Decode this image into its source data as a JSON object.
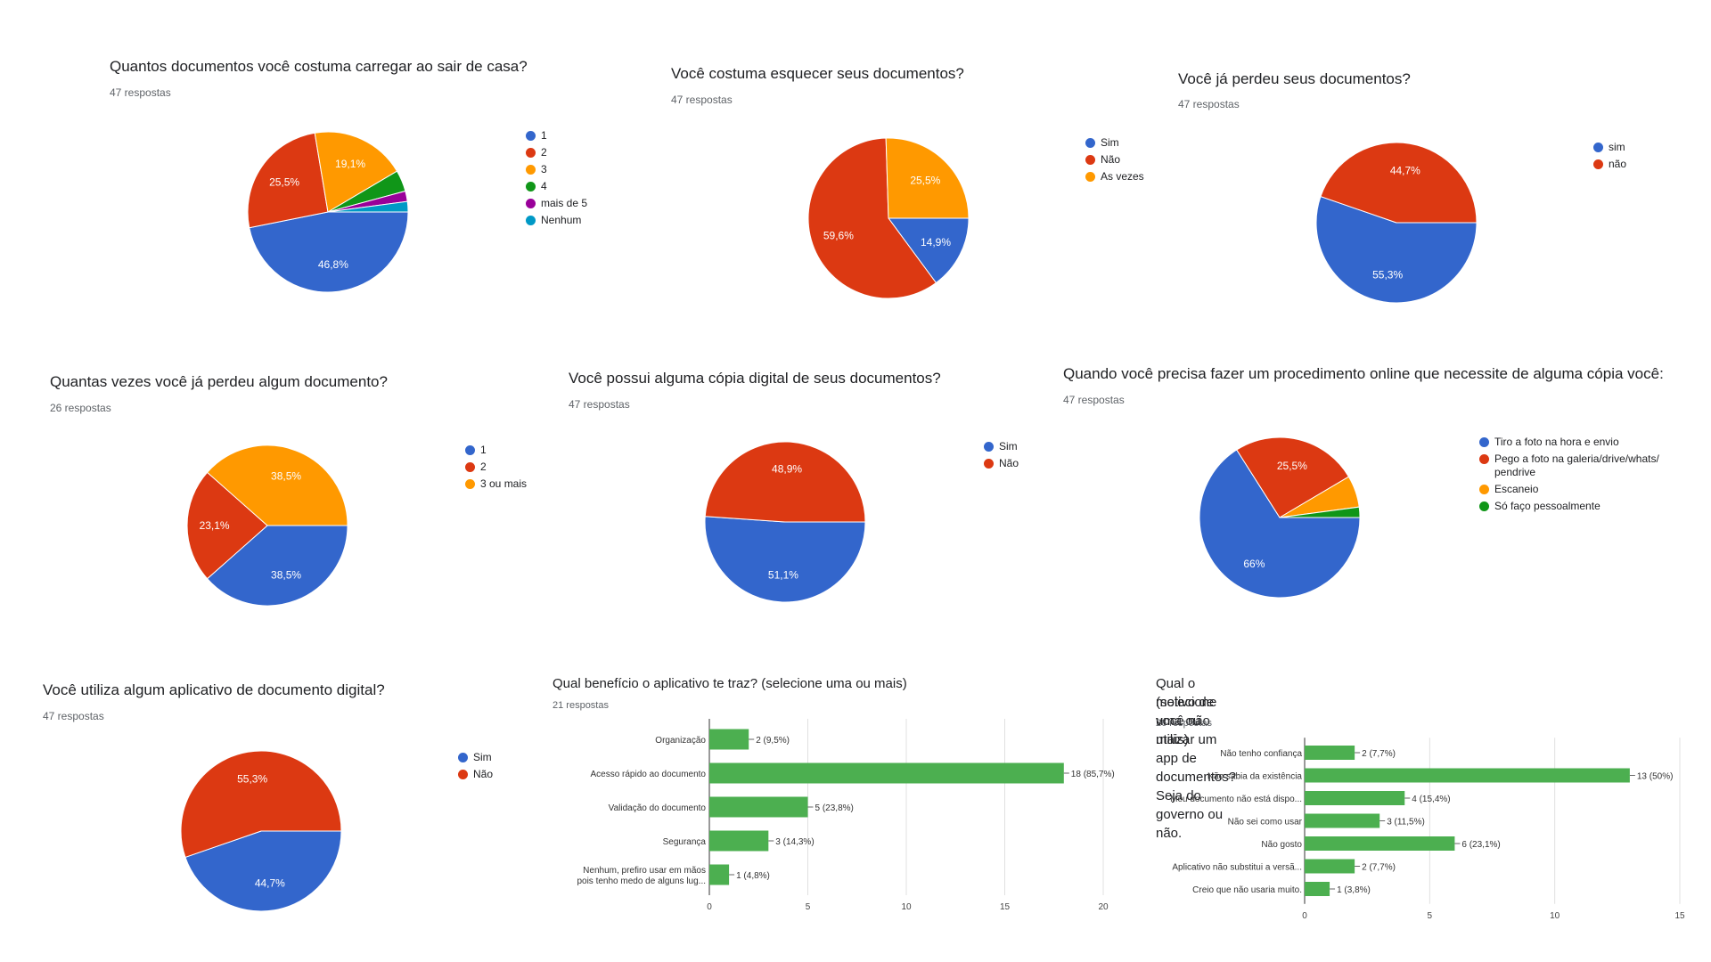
{
  "chart_data": [
    {
      "id": "q1",
      "type": "pie",
      "title": "Quantos documentos você costuma carregar ao sair de casa?",
      "responses": "47 respostas",
      "labels": [
        "1",
        "2",
        "3",
        "4",
        "mais de 5",
        "Nenhum"
      ],
      "values": [
        46.8,
        25.5,
        19.1,
        4.3,
        2.1,
        2.1
      ],
      "value_labels": [
        "46,8%",
        "25,5%",
        "19,1%",
        "",
        "",
        ""
      ],
      "colors": [
        "#3366cc",
        "#dc3912",
        "#ff9900",
        "#109618",
        "#990099",
        "#0099c6"
      ]
    },
    {
      "id": "q2",
      "type": "pie",
      "title": "Você costuma esquecer seus documentos?",
      "responses": "47 respostas",
      "labels": [
        "Sim",
        "Não",
        "As vezes"
      ],
      "values": [
        14.9,
        59.6,
        25.5
      ],
      "value_labels": [
        "14,9%",
        "59,6%",
        "25,5%"
      ],
      "colors": [
        "#3366cc",
        "#dc3912",
        "#ff9900"
      ]
    },
    {
      "id": "q3",
      "type": "pie",
      "title": "Você já perdeu seus documentos?",
      "responses": "47 respostas",
      "labels": [
        "sim",
        "não"
      ],
      "values": [
        55.3,
        44.7
      ],
      "value_labels": [
        "55,3%",
        "44,7%"
      ],
      "colors": [
        "#3366cc",
        "#dc3912"
      ]
    },
    {
      "id": "q4",
      "type": "pie",
      "title": "Quantas vezes você já perdeu algum documento?",
      "responses": "26 respostas",
      "labels": [
        "1",
        "2",
        "3 ou mais"
      ],
      "values": [
        38.5,
        23.1,
        38.5
      ],
      "value_labels": [
        "38,5%",
        "23,1%",
        "38,5%"
      ],
      "colors": [
        "#3366cc",
        "#dc3912",
        "#ff9900"
      ]
    },
    {
      "id": "q5",
      "type": "pie",
      "title": "Você possui alguma cópia digital de seus documentos?",
      "responses": "47 respostas",
      "labels": [
        "Sim",
        "Não"
      ],
      "values": [
        51.1,
        48.9
      ],
      "value_labels": [
        "51,1%",
        "48,9%"
      ],
      "colors": [
        "#3366cc",
        "#dc3912"
      ]
    },
    {
      "id": "q6",
      "type": "pie",
      "title": "Quando você precisa fazer um procedimento online que necessite de alguma cópia você:",
      "responses": "47 respostas",
      "labels": [
        "Tiro a foto na hora e envio",
        "Pego a foto na galeria/drive/whats/ pendrive",
        "Escaneio",
        "Só faço pessoalmente"
      ],
      "values": [
        66,
        25.5,
        6.4,
        2.1
      ],
      "value_labels": [
        "66%",
        "25,5%",
        "",
        ""
      ],
      "colors": [
        "#3366cc",
        "#dc3912",
        "#ff9900",
        "#109618"
      ]
    },
    {
      "id": "q7",
      "type": "pie",
      "title": "Você utiliza algum aplicativo de documento digital?",
      "responses": "47 respostas",
      "labels": [
        "Sim",
        "Não"
      ],
      "values": [
        44.7,
        55.3
      ],
      "value_labels": [
        "44,7%",
        "55,3%"
      ],
      "colors": [
        "#3366cc",
        "#dc3912"
      ]
    },
    {
      "id": "q8",
      "type": "bar",
      "orientation": "horizontal",
      "title": "Qual benefício o aplicativo te traz? (selecione uma ou mais)",
      "responses": "21 respostas",
      "categories": [
        "Organização",
        "Acesso rápido ao documento",
        "Validação do documento",
        "Segurança",
        "Nenhum, prefiro usar em mãos pois tenho medo de alguns lug..."
      ],
      "category_lines": [
        [
          "Organização"
        ],
        [
          "Acesso rápido ao documento"
        ],
        [
          "Validação do documento"
        ],
        [
          "Segurança"
        ],
        [
          "Nenhum, prefiro usar em mãos",
          "pois tenho medo de alguns lug..."
        ]
      ],
      "values": [
        2,
        18,
        5,
        3,
        1
      ],
      "value_labels": [
        "2 (9,5%)",
        "18 (85,7%)",
        "5 (23,8%)",
        "3 (14,3%)",
        "1 (4,8%)"
      ],
      "xlim": [
        0,
        20
      ],
      "ticks": [
        0,
        5,
        10,
        15,
        20
      ],
      "color": "#4caf50"
    },
    {
      "id": "q9",
      "type": "bar",
      "orientation": "horizontal",
      "title": "Qual o motivo de você não utilizar um app de documentos? Seja do governo ou não. (selecione uma ou mais)",
      "title_lines": [
        "Qual o motivo de você não utilizar um app de documentos? Seja do governo ou não.",
        "(selecione uma ou mais)"
      ],
      "responses": "26 respostas",
      "categories": [
        "Não tenho confiança",
        "Não sabia da existência",
        "Meu documento não está dispo...",
        "Não sei como usar",
        "Não gosto",
        "Aplicativo não substitui a versã...",
        "Creio que não usaria muito."
      ],
      "category_lines": [
        [
          "Não tenho confiança"
        ],
        [
          "Não sabia da existência"
        ],
        [
          "Meu documento não está dispo..."
        ],
        [
          "Não sei como usar"
        ],
        [
          "Não gosto"
        ],
        [
          "Aplicativo não substitui a versã..."
        ],
        [
          "Creio que não usaria muito."
        ]
      ],
      "values": [
        2,
        13,
        4,
        3,
        6,
        2,
        1
      ],
      "value_labels": [
        "2 (7,7%)",
        "13 (50%)",
        "4 (15,4%)",
        "3 (11,5%)",
        "6 (23,1%)",
        "2 (7,7%)",
        "1 (3,8%)"
      ],
      "xlim": [
        0,
        15
      ],
      "ticks": [
        0,
        5,
        10,
        15
      ],
      "color": "#4caf50"
    }
  ]
}
